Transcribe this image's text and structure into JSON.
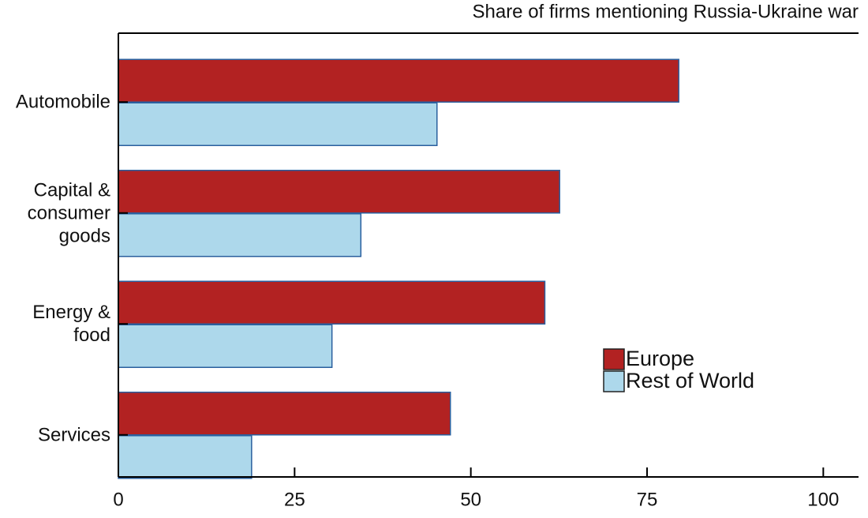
{
  "chart_data": {
    "type": "hbar",
    "title": "Share of firms mentioning Russia-Ukraine war",
    "categories": [
      "Automobile",
      "Capital &\nconsumer\ngoods",
      "Energy &\nfood",
      "Services"
    ],
    "series": [
      {
        "name": "Europe",
        "color": "#b22222",
        "values": [
          79.5,
          62.6,
          60.5,
          47.1
        ]
      },
      {
        "name": "Rest of World",
        "color": "#add8eb",
        "values": [
          45.2,
          34.4,
          30.3,
          18.9
        ]
      }
    ],
    "xlim": [
      0,
      105
    ],
    "xticks": [
      0,
      25,
      50,
      75,
      100
    ],
    "legend": "lower right"
  }
}
